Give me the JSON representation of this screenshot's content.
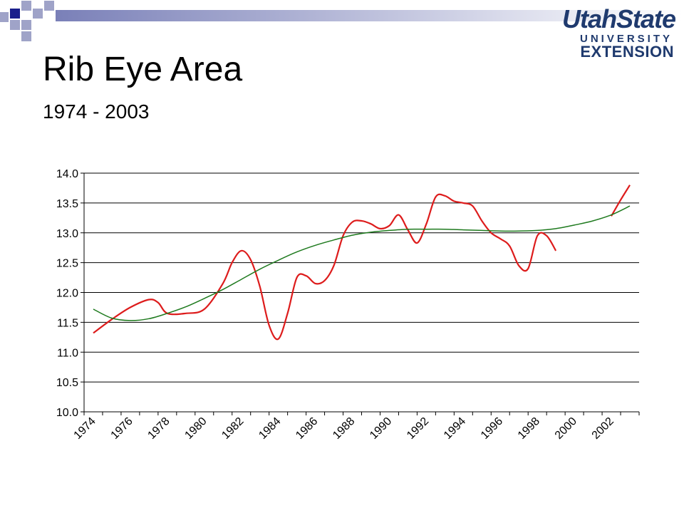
{
  "slide": {
    "title": "Rib Eye Area",
    "subtitle": "1974 - 2003"
  },
  "logo": {
    "line1": "UtahState",
    "line2": "UNIVERSITY",
    "line3": "EXTENSION",
    "color": "#1f3a6e"
  },
  "colors": {
    "corner_dark": "#1a1f8c",
    "corner_light": "#9fa3c8",
    "bar_start": "#7a80b8",
    "bar_end": "#ffffff"
  },
  "chart_data": {
    "type": "line",
    "title": "",
    "xlabel": "",
    "ylabel": "",
    "xlim": [
      1974,
      2003
    ],
    "ylim": [
      10.0,
      14.0
    ],
    "yticks": [
      "10.0",
      "10.5",
      "11.0",
      "11.5",
      "12.0",
      "12.5",
      "13.0",
      "13.5",
      "14.0"
    ],
    "xticks": [
      "1974",
      "1976",
      "1978",
      "1980",
      "1982",
      "1984",
      "1986",
      "1988",
      "1990",
      "1992",
      "1994",
      "1996",
      "1998",
      "2000",
      "2002"
    ],
    "grid": "horizontal",
    "series": [
      {
        "color": "#dd1c1c",
        "segments": [
          [
            [
              1974,
              11.32
            ],
            [
              1975,
              11.55
            ],
            [
              1976,
              11.75
            ],
            [
              1977,
              11.88
            ],
            [
              1977.5,
              11.83
            ],
            [
              1978,
              11.65
            ],
            [
              1979,
              11.65
            ],
            [
              1980,
              11.72
            ],
            [
              1981,
              12.15
            ],
            [
              1981.5,
              12.5
            ],
            [
              1982,
              12.7
            ],
            [
              1982.5,
              12.55
            ],
            [
              1983,
              12.1
            ],
            [
              1983.5,
              11.45
            ],
            [
              1984,
              11.22
            ],
            [
              1984.5,
              11.65
            ],
            [
              1985,
              12.25
            ],
            [
              1985.5,
              12.28
            ],
            [
              1986,
              12.15
            ],
            [
              1986.5,
              12.2
            ],
            [
              1987,
              12.45
            ],
            [
              1987.5,
              12.95
            ],
            [
              1988,
              13.18
            ],
            [
              1988.5,
              13.2
            ],
            [
              1989,
              13.15
            ],
            [
              1989.5,
              13.07
            ],
            [
              1990,
              13.12
            ],
            [
              1990.5,
              13.3
            ],
            [
              1991,
              13.05
            ],
            [
              1991.5,
              12.83
            ],
            [
              1992,
              13.15
            ],
            [
              1992.5,
              13.6
            ],
            [
              1993,
              13.62
            ],
            [
              1993.5,
              13.53
            ],
            [
              1994,
              13.5
            ],
            [
              1994.5,
              13.45
            ],
            [
              1995,
              13.2
            ],
            [
              1995.5,
              13.0
            ],
            [
              1996,
              12.9
            ],
            [
              1996.5,
              12.78
            ],
            [
              1997,
              12.45
            ],
            [
              1997.5,
              12.4
            ],
            [
              1998,
              12.95
            ],
            [
              1998.5,
              12.95
            ],
            [
              1999,
              12.7
            ]
          ],
          [
            [
              2002,
              13.28
            ],
            [
              2002.5,
              13.55
            ],
            [
              2003,
              13.8
            ]
          ]
        ]
      },
      {
        "color": "#1e7a1e",
        "segments": [
          [
            [
              1974,
              11.72
            ],
            [
              1975,
              11.57
            ],
            [
              1976,
              11.53
            ],
            [
              1977,
              11.56
            ],
            [
              1978,
              11.65
            ],
            [
              1979,
              11.76
            ],
            [
              1980,
              11.9
            ],
            [
              1981,
              12.05
            ],
            [
              1982,
              12.22
            ],
            [
              1983,
              12.39
            ],
            [
              1984,
              12.54
            ],
            [
              1985,
              12.68
            ],
            [
              1986,
              12.79
            ],
            [
              1987,
              12.88
            ],
            [
              1988,
              12.96
            ],
            [
              1989,
              13.01
            ],
            [
              1990,
              13.04
            ],
            [
              1991,
              13.06
            ],
            [
              1992,
              13.06
            ],
            [
              1993,
              13.06
            ],
            [
              1994,
              13.05
            ],
            [
              1995,
              13.04
            ],
            [
              1996,
              13.03
            ],
            [
              1997,
              13.03
            ],
            [
              1998,
              13.04
            ],
            [
              1999,
              13.07
            ],
            [
              2000,
              13.13
            ],
            [
              2001,
              13.2
            ],
            [
              2002,
              13.3
            ],
            [
              2003,
              13.45
            ]
          ]
        ]
      }
    ]
  }
}
